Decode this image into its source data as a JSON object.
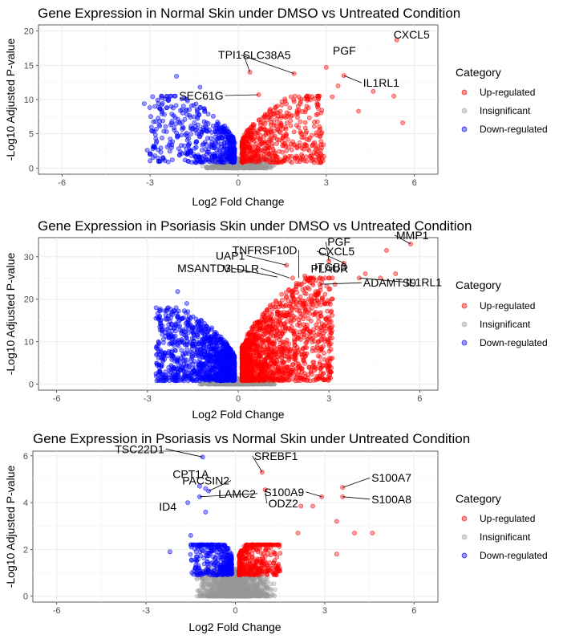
{
  "legend": {
    "title": "Category",
    "items": [
      {
        "label": "Up-regulated",
        "color": "#ff0000"
      },
      {
        "label": "Insignificant",
        "color": "#999999"
      },
      {
        "label": "Down-regulated",
        "color": "#0000ff"
      }
    ]
  },
  "chart_data": [
    {
      "type": "scatter",
      "title": "Gene Expression in Normal Skin under DMSO vs Untreated Condition",
      "xlabel": "Log2 Fold Change",
      "ylabel": "-Log10 Adjusted P-value",
      "xlim": [
        -6.8,
        6.8
      ],
      "ylim": [
        -0.9,
        20.9
      ],
      "xticks": [
        -6,
        -3,
        0,
        3,
        6
      ],
      "yticks": [
        0,
        5,
        10,
        15,
        20
      ],
      "grid": true,
      "legend_position": "right",
      "cloud": {
        "up_xmax": 2.8,
        "up_ymax": 10.5,
        "down_xmin": -2.9,
        "down_ymax": 10.5,
        "up_n": 500,
        "down_n": 480,
        "ins_n": 700
      },
      "points": [
        {
          "x": 5.4,
          "y": 18.7,
          "cat": "up"
        },
        {
          "x": 3.0,
          "y": 14.7,
          "cat": "up"
        },
        {
          "x": 1.9,
          "y": 13.8,
          "cat": "up"
        },
        {
          "x": 3.6,
          "y": 13.5,
          "cat": "up"
        },
        {
          "x": 3.4,
          "y": 12.0,
          "cat": "up"
        },
        {
          "x": 5.3,
          "y": 10.5,
          "cat": "up"
        },
        {
          "x": 4.6,
          "y": 11.2,
          "cat": "up"
        },
        {
          "x": 5.6,
          "y": 6.6,
          "cat": "up"
        },
        {
          "x": 4.1,
          "y": 8.3,
          "cat": "up"
        },
        {
          "x": 3.2,
          "y": 10.4,
          "cat": "up"
        },
        {
          "x": 0.7,
          "y": 10.7,
          "cat": "up"
        },
        {
          "x": 0.4,
          "y": 14.0,
          "cat": "up"
        },
        {
          "x": -3.2,
          "y": 9.4,
          "cat": "down"
        },
        {
          "x": -3.1,
          "y": 2.6,
          "cat": "down"
        },
        {
          "x": -2.3,
          "y": 6.3,
          "cat": "down"
        },
        {
          "x": -2.1,
          "y": 13.4,
          "cat": "down"
        },
        {
          "x": -1.3,
          "y": 11.8,
          "cat": "down"
        }
      ],
      "labels": [
        {
          "text": "PGF",
          "x": 3.0,
          "y": 14.7
        },
        {
          "text": "CXCL5",
          "x": 5.4,
          "y": 18.7
        },
        {
          "text": "SLC38A5",
          "x": 1.9,
          "y": 13.8
        },
        {
          "text": "TPI1",
          "x": 0.4,
          "y": 14.0
        },
        {
          "text": "SEC61G",
          "x": 0.7,
          "y": 10.7
        },
        {
          "text": "IL1RL1",
          "x": 3.6,
          "y": 13.5
        }
      ]
    },
    {
      "type": "scatter",
      "title": "Gene Expression in Psoriasis Skin under DMSO vs Untreated Condition",
      "xlabel": "Log2 Fold Change",
      "ylabel": "-Log10 Adjusted P-value",
      "xlim": [
        -6.6,
        6.6
      ],
      "ylim": [
        -1.4,
        34.5
      ],
      "xticks": [
        -6,
        -3,
        0,
        3,
        6
      ],
      "yticks": [
        0,
        10,
        20,
        30
      ],
      "grid": true,
      "legend_position": "right",
      "cloud": {
        "up_xmax": 3.0,
        "up_ymax": 25,
        "down_xmin": -2.6,
        "down_ymax": 18,
        "up_n": 1300,
        "down_n": 1100,
        "ins_n": 900
      },
      "points": [
        {
          "x": 5.7,
          "y": 33.0,
          "cat": "up"
        },
        {
          "x": 4.9,
          "y": 31.5,
          "cat": "up"
        },
        {
          "x": 3.0,
          "y": 29.0,
          "cat": "up"
        },
        {
          "x": 3.5,
          "y": 28.5,
          "cat": "up"
        },
        {
          "x": 4.7,
          "y": 25.0,
          "cat": "up"
        },
        {
          "x": 4.2,
          "y": 26.0,
          "cat": "up"
        },
        {
          "x": 4.0,
          "y": 25.0,
          "cat": "up"
        },
        {
          "x": 5.2,
          "y": 26.0,
          "cat": "up"
        },
        {
          "x": 1.6,
          "y": 28.0,
          "cat": "up"
        },
        {
          "x": 1.8,
          "y": 25.0,
          "cat": "up"
        },
        {
          "x": 2.2,
          "y": 25.5,
          "cat": "up"
        },
        {
          "x": 2.4,
          "y": 25.0,
          "cat": "up"
        },
        {
          "x": 2.7,
          "y": 23.5,
          "cat": "up"
        },
        {
          "x": 3.2,
          "y": 23.5,
          "cat": "up"
        },
        {
          "x": -2.0,
          "y": 21.8,
          "cat": "down"
        },
        {
          "x": -1.7,
          "y": 19.0,
          "cat": "down"
        }
      ],
      "labels": [
        {
          "text": "MMP1",
          "x": 5.7,
          "y": 33.0
        },
        {
          "text": "PGF",
          "x": 3.0,
          "y": 29.0
        },
        {
          "text": "CXCL5",
          "x": 3.5,
          "y": 28.5
        },
        {
          "text": "IL1RL1",
          "x": 4.0,
          "y": 25.0
        },
        {
          "text": "ADAMTS9",
          "x": 2.7,
          "y": 23.5
        },
        {
          "text": "PLAUR",
          "x": 2.4,
          "y": 25.0
        },
        {
          "text": "ITGB3",
          "x": 2.2,
          "y": 25.5
        },
        {
          "text": "TNFRSF10D",
          "x": 2.0,
          "y": 25.0
        },
        {
          "text": "UAP1",
          "x": 1.6,
          "y": 28.0
        },
        {
          "text": "VLDLR",
          "x": 1.7,
          "y": 25.0
        },
        {
          "text": "MSANTD3",
          "x": 1.3,
          "y": 25.2
        }
      ]
    },
    {
      "type": "scatter",
      "title": "Gene Expression in Psoriasis vs Normal Skin under Untreated Condition",
      "xlabel": "Log2 Fold Change",
      "ylabel": "-Log10 Adjusted P-value",
      "xlim": [
        -6.8,
        6.8
      ],
      "ylim": [
        -0.25,
        6.2
      ],
      "xticks": [
        -6,
        -3,
        0,
        3,
        6
      ],
      "yticks": [
        0,
        2,
        4,
        6
      ],
      "grid": true,
      "legend_position": "right",
      "cloud": {
        "up_xmax": 1.4,
        "up_ymax": 2.2,
        "down_xmin": -1.4,
        "down_ymax": 2.2,
        "up_n": 350,
        "down_n": 320,
        "ins_n": 1500
      },
      "points": [
        {
          "x": -1.1,
          "y": 5.95,
          "cat": "down"
        },
        {
          "x": -1.2,
          "y": 4.7,
          "cat": "down"
        },
        {
          "x": -1.0,
          "y": 4.6,
          "cat": "down"
        },
        {
          "x": -0.9,
          "y": 4.5,
          "cat": "down"
        },
        {
          "x": -1.2,
          "y": 4.25,
          "cat": "down"
        },
        {
          "x": -1.6,
          "y": 4.0,
          "cat": "down"
        },
        {
          "x": -1.0,
          "y": 3.6,
          "cat": "down"
        },
        {
          "x": -2.2,
          "y": 1.9,
          "cat": "down"
        },
        {
          "x": -1.5,
          "y": 2.6,
          "cat": "down"
        },
        {
          "x": 0.9,
          "y": 5.3,
          "cat": "up"
        },
        {
          "x": 1.0,
          "y": 4.55,
          "cat": "up"
        },
        {
          "x": 3.6,
          "y": 4.65,
          "cat": "up"
        },
        {
          "x": 3.6,
          "y": 4.25,
          "cat": "up"
        },
        {
          "x": 2.9,
          "y": 4.25,
          "cat": "up"
        },
        {
          "x": 2.6,
          "y": 3.85,
          "cat": "up"
        },
        {
          "x": 2.2,
          "y": 3.85,
          "cat": "up"
        },
        {
          "x": 3.4,
          "y": 3.2,
          "cat": "up"
        },
        {
          "x": 4.0,
          "y": 2.7,
          "cat": "up"
        },
        {
          "x": 4.6,
          "y": 2.7,
          "cat": "up"
        },
        {
          "x": 2.1,
          "y": 2.7,
          "cat": "up"
        },
        {
          "x": 3.4,
          "y": 1.8,
          "cat": "up"
        }
      ],
      "labels": [
        {
          "text": "TSC22D1",
          "x": -1.1,
          "y": 5.95
        },
        {
          "text": "SREBF1",
          "x": 0.9,
          "y": 5.3
        },
        {
          "text": "PACSIN2",
          "x": -0.9,
          "y": 4.5
        },
        {
          "text": "S100A7",
          "x": 3.6,
          "y": 4.65
        },
        {
          "text": "CPT1A",
          "x": -1.0,
          "y": 4.6
        },
        {
          "text": "S100A9",
          "x": 2.9,
          "y": 4.25
        },
        {
          "text": "LAMC2",
          "x": -1.2,
          "y": 4.25
        },
        {
          "text": "ODZ2",
          "x": 1.0,
          "y": 4.55
        },
        {
          "text": "ID4",
          "x": -1.6,
          "y": 4.0
        },
        {
          "text": "S100A8",
          "x": 3.6,
          "y": 4.25
        }
      ]
    }
  ]
}
